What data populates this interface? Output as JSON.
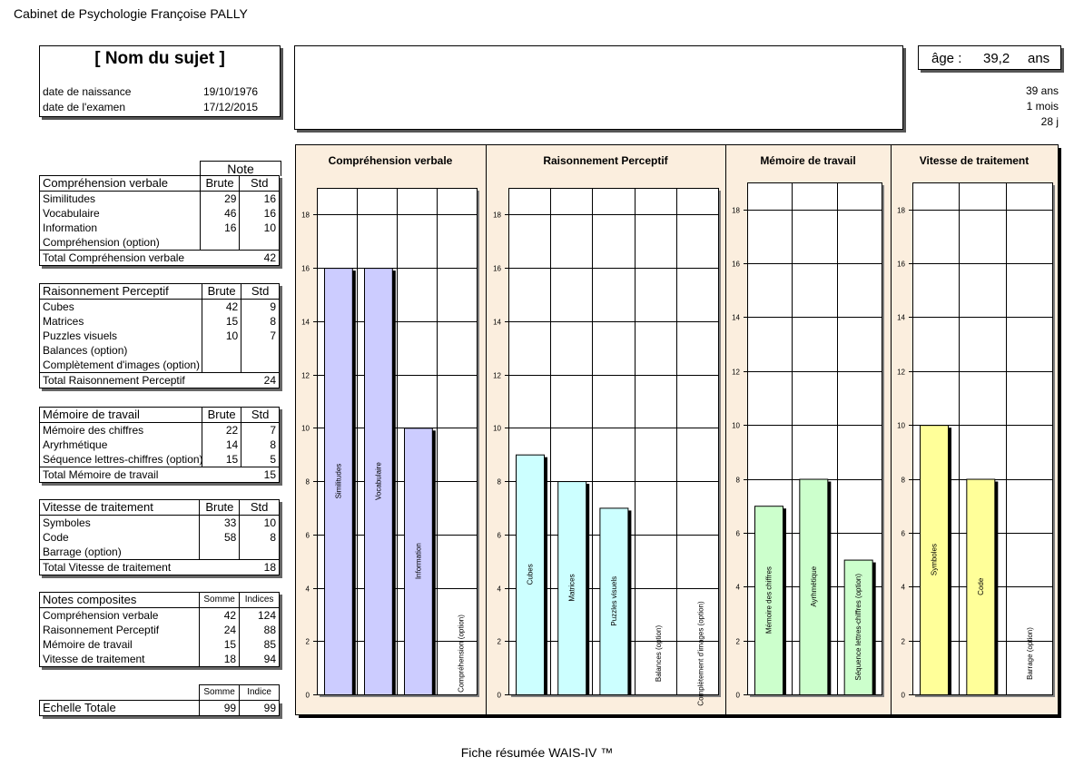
{
  "header": {
    "cabinet": "Cabinet de Psychologie Françoise PALLY"
  },
  "subject": {
    "name": "[ Nom du sujet ]",
    "birth_label": "date de naissance",
    "birth_value": "19/10/1976",
    "exam_label": "date de l'examen",
    "exam_value": "17/12/2015"
  },
  "age": {
    "label": "âge :",
    "value": "39,2",
    "unit": "ans",
    "years": "39 ans",
    "months": "1 mois",
    "days": "28 j"
  },
  "footer": {
    "title": "Fiche résumée WAIS-IV ™"
  },
  "tables": {
    "note_header": "Note",
    "brute": "Brute",
    "std": "Std",
    "cv": {
      "title": "Compréhension verbale",
      "rows": [
        {
          "label": "Similitudes",
          "brute": "29",
          "std": "16"
        },
        {
          "label": "Vocabulaire",
          "brute": "46",
          "std": "16"
        },
        {
          "label": "Information",
          "brute": "16",
          "std": "10"
        },
        {
          "label": "Compréhension (option)",
          "brute": "",
          "std": ""
        }
      ],
      "total_label": "Total Compréhension verbale",
      "total": "42"
    },
    "rp": {
      "title": "Raisonnement Perceptif",
      "rows": [
        {
          "label": "Cubes",
          "brute": "42",
          "std": "9"
        },
        {
          "label": "Matrices",
          "brute": "15",
          "std": "8"
        },
        {
          "label": "Puzzles visuels",
          "brute": "10",
          "std": "7"
        },
        {
          "label": "Balances (option)",
          "brute": "",
          "std": ""
        },
        {
          "label": "Complètement d'images (option)",
          "brute": "",
          "std": ""
        }
      ],
      "total_label": "Total Raisonnement Perceptif",
      "total": "24"
    },
    "mt": {
      "title": "Mémoire de travail",
      "rows": [
        {
          "label": "Mémoire des chiffres",
          "brute": "22",
          "std": "7"
        },
        {
          "label": "Aryrhmétique",
          "brute": "14",
          "std": "8"
        },
        {
          "label": "Séquence lettres-chiffres (option)",
          "brute": "15",
          "std": "5"
        }
      ],
      "total_label": "Total Mémoire de travail",
      "total": "15"
    },
    "vt": {
      "title": "Vitesse de traitement",
      "rows": [
        {
          "label": "Symboles",
          "brute": "33",
          "std": "10"
        },
        {
          "label": "Code",
          "brute": "58",
          "std": "8"
        },
        {
          "label": "Barrage (option)",
          "brute": "",
          "std": ""
        }
      ],
      "total_label": "Total Vitesse de traitement",
      "total": "18"
    },
    "composites": {
      "title": "Notes composites",
      "somme": "Somme",
      "indices": "Indices",
      "rows": [
        {
          "label": "Compréhension verbale",
          "somme": "42",
          "indice": "124"
        },
        {
          "label": "Raisonnement Perceptif",
          "somme": "24",
          "indice": "88"
        },
        {
          "label": "Mémoire de travail",
          "somme": "15",
          "indice": "85"
        },
        {
          "label": "Vitesse de traitement",
          "somme": "18",
          "indice": "94"
        }
      ]
    },
    "total": {
      "somme": "Somme",
      "indice": "Indice",
      "label": "Echelle Totale",
      "somme_value": "99",
      "indice_value": "99"
    }
  },
  "chart_data": {
    "type": "bar",
    "ylim": [
      0,
      19
    ],
    "yticks": [
      0,
      2,
      4,
      6,
      8,
      10,
      12,
      14,
      16,
      18
    ],
    "grid": true,
    "panels": [
      {
        "title": "Compréhension verbale",
        "color": "#ccccff",
        "categories": [
          "Similitudes",
          "Vocabulaire",
          "Information",
          "Compréhension (option)"
        ],
        "values": [
          16,
          16,
          10,
          null
        ]
      },
      {
        "title": "Raisonnement Perceptif",
        "color": "#ccffff",
        "categories": [
          "Cubes",
          "Matrices",
          "Puzzles visuels",
          "Balances (option)",
          "Complètement d'images (option)"
        ],
        "values": [
          9,
          8,
          7,
          null,
          null
        ]
      },
      {
        "title": "Mémoire de travail",
        "color": "#ccffcc",
        "categories": [
          "Mémoire des chiffres",
          "Ayrhmétique",
          "Séquence lettres-chiffres (option)"
        ],
        "values": [
          7,
          8,
          5
        ]
      },
      {
        "title": "Vitesse de traitement",
        "color": "#ffff99",
        "categories": [
          "Symboles",
          "Code",
          "Barrage (option)"
        ],
        "values": [
          10,
          8,
          null
        ]
      }
    ],
    "panel_background": "#fbeede"
  }
}
